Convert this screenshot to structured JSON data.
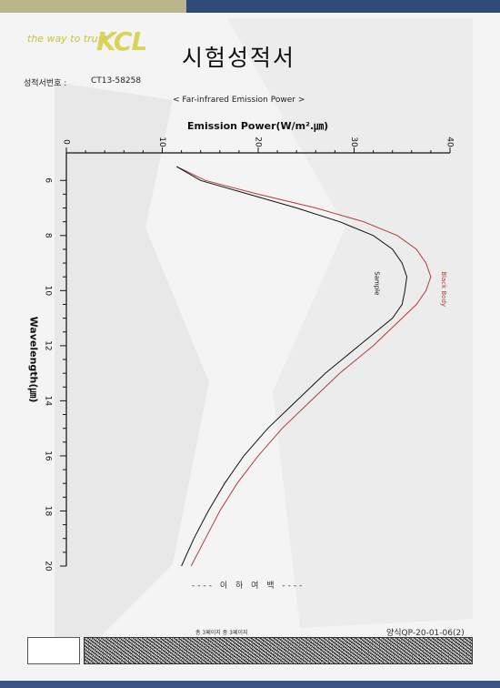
{
  "header": {
    "tagline": "the way to trust",
    "logo": "KCL",
    "title": "시험성적서"
  },
  "certificate": {
    "label": "성적서번호 :",
    "number": "CT13-58258"
  },
  "subtitle": "< Far-infrared Emission Power >",
  "chart_data": {
    "type": "line",
    "ylabel": "Emission Power(W/m².㎛)",
    "xlabel": "Wavelength(㎛)",
    "xlim": [
      5,
      20
    ],
    "ylim": [
      0,
      40
    ],
    "x_ticks": [
      6,
      8,
      10,
      12,
      14,
      16,
      18,
      20
    ],
    "y_ticks": [
      0,
      10,
      20,
      30,
      40
    ],
    "series": [
      {
        "name": "Black Body",
        "color": "#b23a3a",
        "x": [
          5.5,
          6,
          6.5,
          7,
          7.5,
          8,
          8.5,
          9,
          9.5,
          10,
          10.5,
          11,
          12,
          13,
          14,
          15,
          16,
          17,
          18,
          19,
          20
        ],
        "y": [
          11.5,
          14.5,
          20,
          26,
          31,
          34.5,
          36.5,
          37.5,
          38,
          37.5,
          36.5,
          35,
          32,
          28.5,
          25.5,
          22.5,
          20,
          17.8,
          16,
          14.5,
          13
        ]
      },
      {
        "name": "Sample",
        "color": "#111111",
        "x": [
          5.5,
          6,
          6.5,
          7,
          7.5,
          8,
          8.5,
          9,
          9.5,
          10,
          10.5,
          11,
          12,
          13,
          14,
          15,
          16,
          17,
          18,
          19,
          20
        ],
        "y": [
          11.5,
          14,
          19,
          24,
          28.5,
          32,
          34,
          35,
          35.5,
          35.3,
          35,
          34,
          30.5,
          27,
          24,
          21,
          18.5,
          16.5,
          14.8,
          13.3,
          12
        ]
      }
    ]
  },
  "footer": {
    "end_mark": "---- 이 하 여 백 ----",
    "page_info": "총 3페이지 중 3페이지",
    "form_no": "양식QP-20-01-06(2)"
  }
}
